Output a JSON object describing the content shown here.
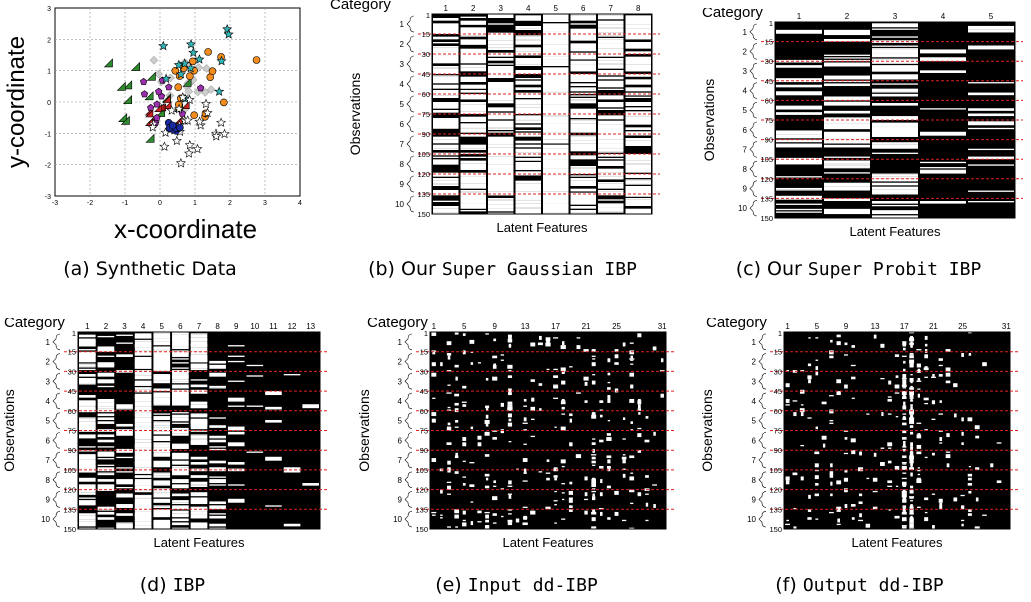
{
  "figure": {
    "captions": [
      {
        "label": "(a) ",
        "name": "Synthetic Data",
        "mono": false
      },
      {
        "label": "(b) Our ",
        "name": "Super Gaussian IBP",
        "mono": true
      },
      {
        "label": "(c) Our ",
        "name": "Super Probit IBP",
        "mono": true
      },
      {
        "label": "(d) ",
        "name": "IBP",
        "mono": true
      },
      {
        "label": "(e) ",
        "name": "Input dd-IBP",
        "mono": true
      },
      {
        "label": "(f) ",
        "name": "Output dd-IBP",
        "mono": true
      }
    ]
  },
  "scatter": {
    "xlabel": "x-coordinate",
    "ylabel": "y-coordinate",
    "xticks": [
      "-3",
      "-2",
      "-1",
      "0",
      "1",
      "2",
      "3",
      "4"
    ],
    "yticks": [
      "3",
      "2",
      "1",
      "0",
      "-1",
      "-2",
      "-3"
    ],
    "xlim": [
      -3,
      4
    ],
    "ylim": [
      -3,
      3
    ],
    "colors": {
      "triangle_green": "#2e8b2e",
      "triangle_red": "#cc2222",
      "circle_orange": "#f28c1e",
      "pentagon_purple": "#9b2fae",
      "star_cyan": "#33b5b5",
      "star_white": "#ffffff",
      "diamond_gray": "#cccccc",
      "dot_blue": "#1a2aa0"
    }
  },
  "heatmap_common": {
    "category_label": "Category",
    "ylabel": "Observations",
    "xlabel": "Latent Features",
    "category_ticks": [
      "1",
      "2",
      "3",
      "4",
      "5",
      "6",
      "7",
      "8",
      "9",
      "10"
    ],
    "obs_ticks": [
      "1",
      "15",
      "30",
      "45",
      "60",
      "75",
      "90",
      "105",
      "120",
      "135",
      "150"
    ],
    "line_color": "#e02020"
  },
  "heatmaps": [
    {
      "id": "b",
      "col_labels": [
        "1",
        "2",
        "3",
        "4",
        "5",
        "6",
        "7",
        "8"
      ]
    },
    {
      "id": "c",
      "col_labels": [
        "1",
        "2",
        "3",
        "4",
        "5"
      ]
    },
    {
      "id": "d",
      "col_labels": [
        "1",
        "2",
        "3",
        "4",
        "5",
        "6",
        "7",
        "8",
        "9",
        "10",
        "11",
        "12",
        "13"
      ]
    },
    {
      "id": "e",
      "col_labels": [
        "1",
        "5",
        "9",
        "13",
        "17",
        "21",
        "25",
        "31"
      ]
    },
    {
      "id": "f",
      "col_labels": [
        "1",
        "5",
        "9",
        "13",
        "17",
        "21",
        "25",
        "31"
      ]
    }
  ]
}
